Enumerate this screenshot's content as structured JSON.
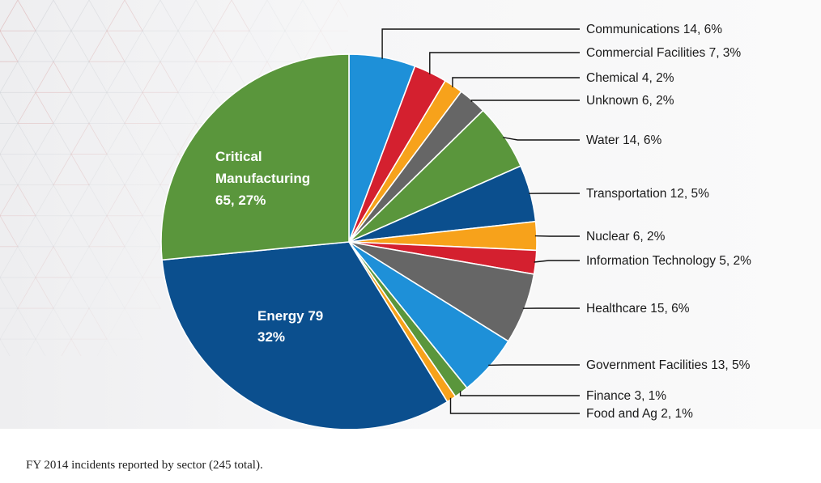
{
  "chart_data": {
    "type": "pie",
    "total": 245,
    "slices": [
      {
        "label": "Communications",
        "value": 14,
        "percent": "6%",
        "color": "#1e90d8"
      },
      {
        "label": "Commercial Facilities",
        "value": 7,
        "percent": "3%",
        "color": "#d4202f"
      },
      {
        "label": "Chemical",
        "value": 4,
        "percent": "2%",
        "color": "#f7a21b"
      },
      {
        "label": "Unknown",
        "value": 6,
        "percent": "2%",
        "color": "#666666"
      },
      {
        "label": "Water",
        "value": 14,
        "percent": "6%",
        "color": "#5a963c"
      },
      {
        "label": "Transportation",
        "value": 12,
        "percent": "5%",
        "color": "#0b4f8e"
      },
      {
        "label": "Nuclear",
        "value": 6,
        "percent": "2%",
        "color": "#f7a21b"
      },
      {
        "label": "Information Technology",
        "value": 5,
        "percent": "2%",
        "color": "#d4202f"
      },
      {
        "label": "Healthcare",
        "value": 15,
        "percent": "6%",
        "color": "#666666"
      },
      {
        "label": "Government Facilities",
        "value": 13,
        "percent": "5%",
        "color": "#1e90d8"
      },
      {
        "label": "Finance",
        "value": 3,
        "percent": "1%",
        "color": "#5a963c"
      },
      {
        "label": "Food and Ag",
        "value": 2,
        "percent": "1%",
        "color": "#f7a21b"
      },
      {
        "label": "Energy",
        "value": 79,
        "percent": "32%",
        "color": "#0b4f8e"
      },
      {
        "label": "Critical Manufacturing",
        "value": 65,
        "percent": "27%",
        "color": "#5a963c"
      }
    ],
    "callouts": [
      "Communications 14, 6%",
      "Commercial Facilities 7, 3%",
      "Chemical 4, 2%",
      "Unknown 6, 2%",
      "Water 14, 6%",
      "Transportation 12, 5%",
      "Nuclear  6, 2%",
      "Information Technology 5, 2%",
      "Healthcare  15, 6%",
      "Government Facilities 13, 5%",
      "Finance  3, 1%",
      "Food and Ag  2, 1%"
    ],
    "inside_labels": {
      "critical_manufacturing": [
        "Critical",
        "Manufacturing",
        "65, 27%"
      ],
      "energy": [
        "Energy  79",
        "32%"
      ]
    }
  },
  "caption": "FY 2014 incidents reported by sector (245 total)."
}
